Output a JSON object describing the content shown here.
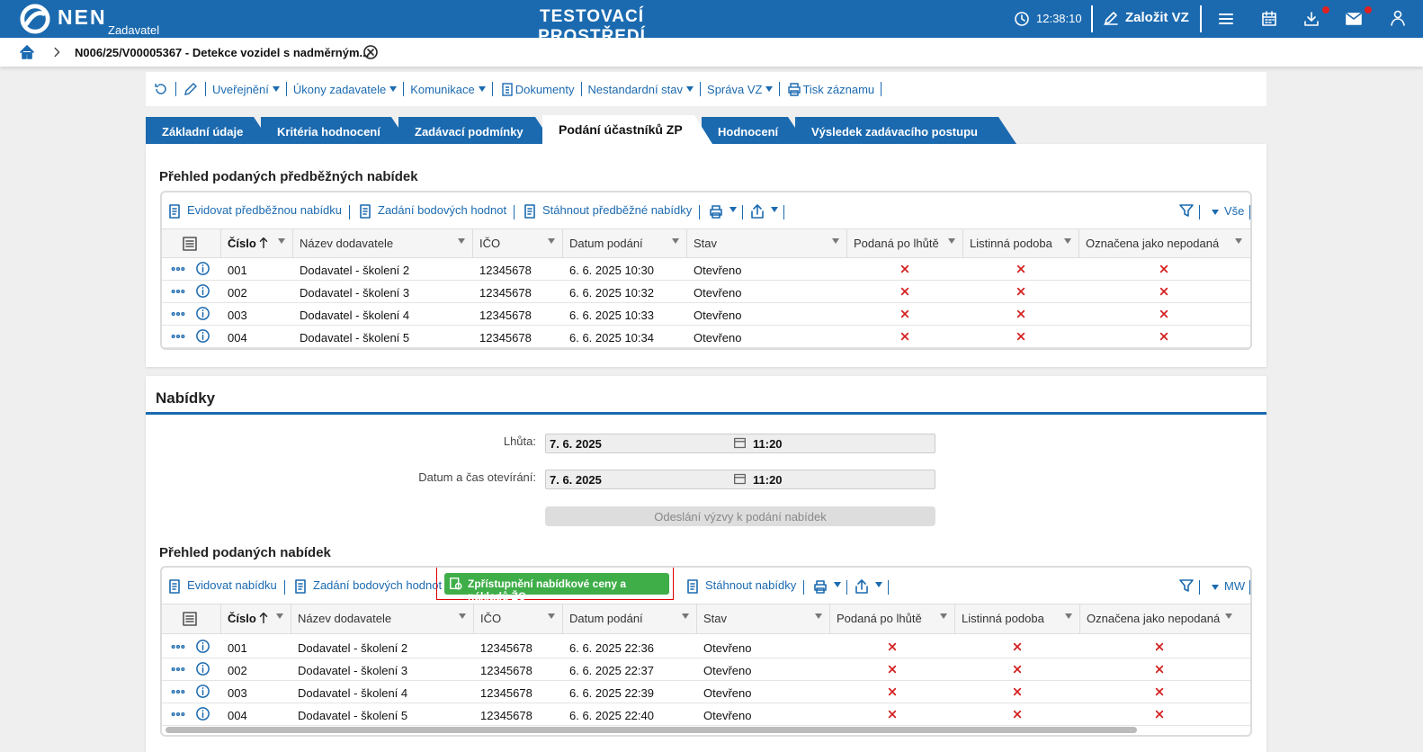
{
  "header": {
    "logo": "NEN",
    "role": "Zadavatel",
    "title": "TESTOVACÍ PROSTŘEDÍ",
    "time": "12:38:10",
    "create": "Založit VZ"
  },
  "breadcrumb": "N006/25/V00005367 - Detekce vozidel s nadměrným...",
  "toolbar": [
    "Uveřejnění",
    "Úkony zadavatele",
    "Komunikace",
    "Dokumenty",
    "Nestandardní stav",
    "Správa VZ",
    "Tisk záznamu"
  ],
  "tabs": [
    "Základní údaje",
    "Kritéria hodnocení",
    "Zadávací podmínky",
    "Podání účastníků ZP",
    "Hodnocení",
    "Výsledek zadávacího postupu"
  ],
  "active_tab": 3,
  "preliminary": {
    "title": "Přehled podaných předběžných nabídek",
    "actions": [
      "Evidovat předběžnou nabídku",
      "Zadání bodových hodnot",
      "Stáhnout předběžné nabídky"
    ],
    "filter": "Vše",
    "columns": [
      "Číslo",
      "Název dodavatele",
      "IČO",
      "Datum podání",
      "Stav",
      "Podaná po lhůtě",
      "Listinná podoba",
      "Označena jako nepodaná"
    ],
    "rows": [
      [
        "001",
        "Dodavatel - školení 2",
        "12345678",
        "6. 6. 2025 10:30",
        "Otevřeno"
      ],
      [
        "002",
        "Dodavatel - školení 3",
        "12345678",
        "6. 6. 2025 10:32",
        "Otevřeno"
      ],
      [
        "003",
        "Dodavatel - školení 4",
        "12345678",
        "6. 6. 2025 10:33",
        "Otevřeno"
      ],
      [
        "004",
        "Dodavatel - školení 5",
        "12345678",
        "6. 6. 2025 10:34",
        "Otevřeno"
      ]
    ]
  },
  "offers": {
    "title": "Nabídky",
    "fields": [
      {
        "label": "Lhůta:",
        "date": "7. 6. 2025",
        "time": "11:20"
      },
      {
        "label": "Datum a čas otevírání:",
        "date": "7. 6. 2025",
        "time": "11:20"
      }
    ],
    "button": "Odeslání výzvy k podání nabídek",
    "subtitle": "Přehled podaných nabídek",
    "actions": [
      "Evidovat nabídku",
      "Zadání bodových hodnot",
      "Zpřístupnění nabídkové ceny a nákladů ŽC",
      "Stáhnout nabídky"
    ],
    "filter": "MW",
    "columns": [
      "Číslo",
      "Název dodavatele",
      "IČO",
      "Datum podání",
      "Stav",
      "Podaná po lhůtě",
      "Listinná podoba",
      "Označena jako nepodaná"
    ],
    "rows": [
      [
        "001",
        "Dodavatel - školení 2",
        "12345678",
        "6. 6. 2025 22:36",
        "Otevřeno"
      ],
      [
        "002",
        "Dodavatel - školení 3",
        "12345678",
        "6. 6. 2025 22:37",
        "Otevřeno"
      ],
      [
        "003",
        "Dodavatel - školení 4",
        "12345678",
        "6. 6. 2025 22:39",
        "Otevřeno"
      ],
      [
        "004",
        "Dodavatel - školení 5",
        "12345678",
        "6. 6. 2025 22:40",
        "Otevřeno"
      ]
    ]
  }
}
